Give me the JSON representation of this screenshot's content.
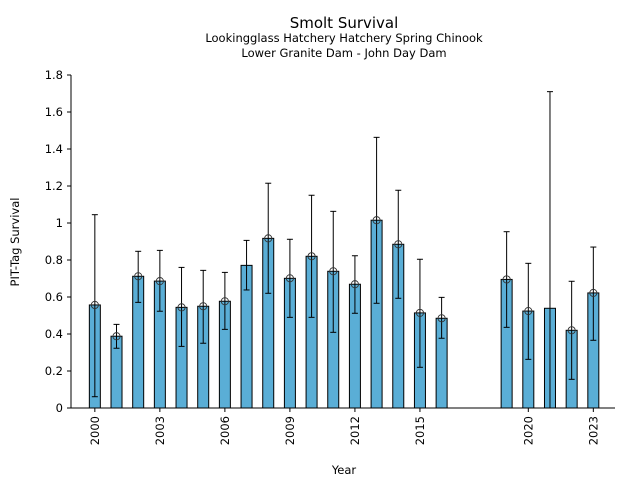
{
  "chart_data": {
    "type": "bar",
    "title": "Smolt Survival",
    "subtitle_lines": [
      "Lookingglass Hatchery Hatchery Spring Chinook",
      "Lower Granite Dam - John Day Dam"
    ],
    "xlabel": "Year",
    "ylabel": "PIT-Tag Survival",
    "xlim": [
      1998.9,
      2024.0
    ],
    "ylim": [
      0,
      1.8
    ],
    "x_ticks": [
      2000,
      2003,
      2006,
      2009,
      2012,
      2015,
      2020,
      2023
    ],
    "x_tick_labels": [
      "2000",
      "2003",
      "2006",
      "2009",
      "2012",
      "2015",
      "2020",
      "2023"
    ],
    "y_ticks": [
      0,
      0.2,
      0.4,
      0.6,
      0.8,
      1.0,
      1.2,
      1.4,
      1.6,
      1.8
    ],
    "y_tick_labels": [
      "0",
      "0.2",
      "0.4",
      "0.6",
      "0.8",
      "1",
      "1.2",
      "1.4",
      "1.6",
      "1.8"
    ],
    "grid": false,
    "bar_color": "#5aaed6",
    "series": [
      {
        "name": "PIT-Tag Survival",
        "points": [
          {
            "year": 2000,
            "value": 0.557,
            "lower": 0.061,
            "upper": 1.045,
            "marker": true
          },
          {
            "year": 2001,
            "value": 0.388,
            "lower": 0.323,
            "upper": 0.452,
            "marker": true
          },
          {
            "year": 2002,
            "value": 0.712,
            "lower": 0.571,
            "upper": 0.847,
            "marker": true
          },
          {
            "year": 2003,
            "value": 0.686,
            "lower": 0.523,
            "upper": 0.852,
            "marker": true
          },
          {
            "year": 2004,
            "value": 0.544,
            "lower": 0.333,
            "upper": 0.76,
            "marker": true
          },
          {
            "year": 2005,
            "value": 0.55,
            "lower": 0.35,
            "upper": 0.744,
            "marker": true
          },
          {
            "year": 2006,
            "value": 0.577,
            "lower": 0.425,
            "upper": 0.733,
            "marker": true
          },
          {
            "year": 2007,
            "value": 0.771,
            "lower": 0.638,
            "upper": 0.906,
            "marker": false
          },
          {
            "year": 2008,
            "value": 0.917,
            "lower": 0.62,
            "upper": 1.215,
            "marker": true
          },
          {
            "year": 2009,
            "value": 0.701,
            "lower": 0.49,
            "upper": 0.912,
            "marker": true
          },
          {
            "year": 2010,
            "value": 0.82,
            "lower": 0.49,
            "upper": 1.15,
            "marker": true
          },
          {
            "year": 2011,
            "value": 0.739,
            "lower": 0.409,
            "upper": 1.063,
            "marker": true
          },
          {
            "year": 2012,
            "value": 0.669,
            "lower": 0.512,
            "upper": 0.823,
            "marker": true
          },
          {
            "year": 2013,
            "value": 1.015,
            "lower": 0.566,
            "upper": 1.463,
            "marker": true
          },
          {
            "year": 2014,
            "value": 0.885,
            "lower": 0.593,
            "upper": 1.177,
            "marker": true
          },
          {
            "year": 2015,
            "value": 0.514,
            "lower": 0.22,
            "upper": 0.804,
            "marker": true
          },
          {
            "year": 2016,
            "value": 0.485,
            "lower": 0.377,
            "upper": 0.598,
            "marker": true
          },
          {
            "year": 2019,
            "value": 0.695,
            "lower": 0.436,
            "upper": 0.953,
            "marker": true
          },
          {
            "year": 2020,
            "value": 0.524,
            "lower": 0.263,
            "upper": 0.782,
            "marker": true
          },
          {
            "year": 2021,
            "value": 0.539,
            "lower": 0.0,
            "upper": 1.71,
            "marker": false
          },
          {
            "year": 2022,
            "value": 0.42,
            "lower": 0.155,
            "upper": 0.685,
            "marker": true
          },
          {
            "year": 2023,
            "value": 0.622,
            "lower": 0.366,
            "upper": 0.87,
            "marker": true
          }
        ]
      }
    ]
  }
}
